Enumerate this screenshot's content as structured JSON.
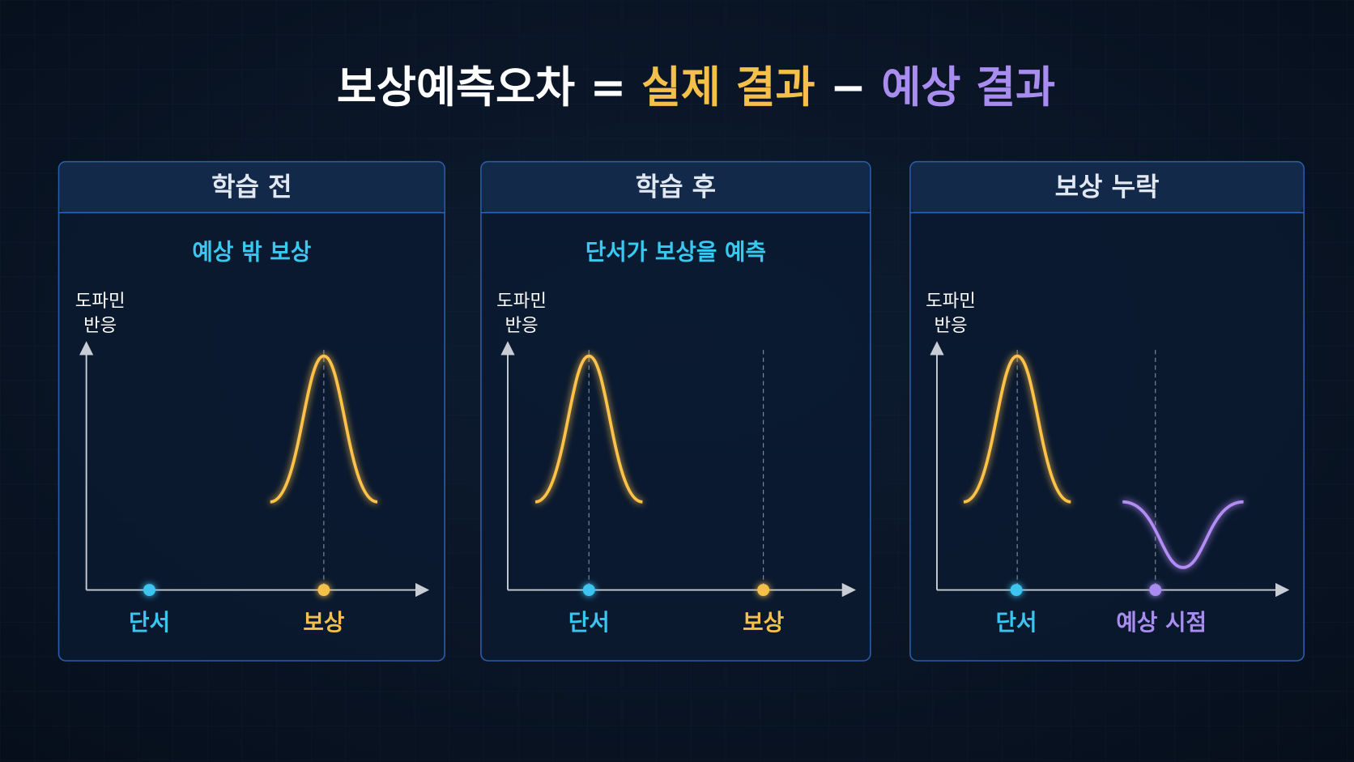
{
  "title": {
    "parts": [
      "보상예측오차 =",
      "실제 결과",
      "−",
      "예상 결과"
    ]
  },
  "panels": [
    {
      "header": "학습 전",
      "subtitle": "예상 밖 보상",
      "y_label": [
        "도파민",
        "반응"
      ],
      "x_labels": [
        "단서",
        "보상"
      ]
    },
    {
      "header": "학습 후",
      "subtitle": "단서가 보상을 예측",
      "y_label": [
        "도파민",
        "반응"
      ],
      "x_labels": [
        "단서",
        "보상"
      ]
    },
    {
      "header": "보상 누락",
      "subtitle": "",
      "y_label": [
        "도파민",
        "반응"
      ],
      "x_labels": [
        "단서",
        "예상 시점"
      ]
    }
  ]
}
